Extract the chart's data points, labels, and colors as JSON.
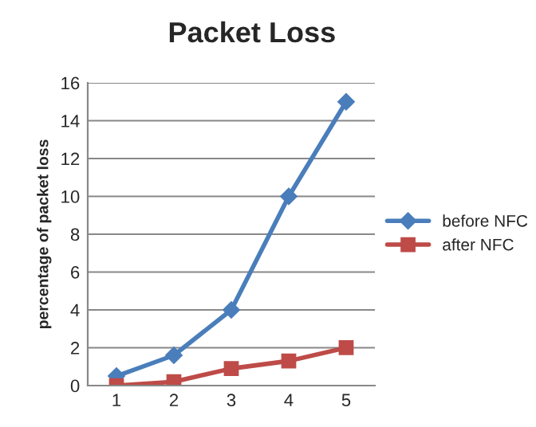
{
  "chart_data": {
    "type": "line",
    "title": "Packet Loss",
    "ylabel": "percentage of packet loss",
    "categories": [
      "1",
      "2",
      "3",
      "4",
      "5"
    ],
    "series": [
      {
        "name": "before NFC",
        "color": "#4a7ebb",
        "marker": "diamond",
        "values": [
          0.5,
          1.6,
          4,
          10,
          15
        ]
      },
      {
        "name": "after NFC",
        "color": "#be4b48",
        "marker": "square",
        "values": [
          0,
          0.2,
          0.9,
          1.3,
          2
        ]
      }
    ],
    "ylim": [
      0,
      16
    ],
    "yticks": [
      0,
      2,
      4,
      6,
      8,
      10,
      12,
      14,
      16
    ],
    "grid": "y",
    "legend": "right"
  }
}
